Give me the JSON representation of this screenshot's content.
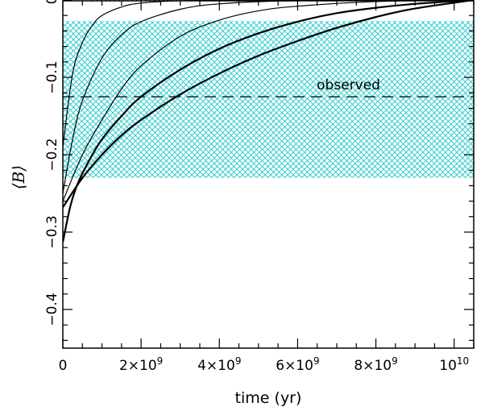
{
  "chart_data": {
    "type": "line",
    "xlabel": "time (yr)",
    "ylabel": "⟨B⟩",
    "xlim": [
      0,
      10500000000.0
    ],
    "ylim": [
      -0.45,
      0.0
    ],
    "x_ticks": [
      {
        "value": 0,
        "label": "0"
      },
      {
        "value": 2000000000.0,
        "label": "2×10^9"
      },
      {
        "value": 4000000000.0,
        "label": "4×10^9"
      },
      {
        "value": 6000000000.0,
        "label": "6×10^9"
      },
      {
        "value": 8000000000.0,
        "label": "8×10^9"
      },
      {
        "value": 10000000000.0,
        "label": "10^10"
      }
    ],
    "y_ticks": [
      {
        "value": 0,
        "label": "0"
      },
      {
        "value": -0.1,
        "label": "−0.1"
      },
      {
        "value": -0.2,
        "label": "−0.2"
      },
      {
        "value": -0.3,
        "label": "−0.3"
      },
      {
        "value": -0.4,
        "label": "−0.4"
      }
    ],
    "reference_line": {
      "value": 0,
      "style": "dotted"
    },
    "observed_line": {
      "value": -0.125,
      "style": "dashed",
      "label": "observed"
    },
    "observed_band": {
      "y_range": [
        -0.23,
        -0.027
      ],
      "color": "#33cccc",
      "pattern": "crosshatch"
    },
    "series": [
      {
        "width": 1.2,
        "values": [
          [
            0,
            -0.19
          ],
          [
            250000000.0,
            -0.095
          ],
          [
            500000000.0,
            -0.055
          ],
          [
            750000000.0,
            -0.033
          ],
          [
            1000000000.0,
            -0.02
          ],
          [
            1500000000.0,
            -0.009
          ],
          [
            2000000000.0,
            -0.004
          ],
          [
            3000000000.0,
            -0.001
          ],
          [
            5000000000.0,
            0.0
          ],
          [
            10500000000.0,
            0.0
          ]
        ]
      },
      {
        "width": 1.2,
        "values": [
          [
            0,
            -0.25
          ],
          [
            250000000.0,
            -0.18
          ],
          [
            500000000.0,
            -0.13
          ],
          [
            1000000000.0,
            -0.075
          ],
          [
            1500000000.0,
            -0.045
          ],
          [
            2000000000.0,
            -0.028
          ],
          [
            3000000000.0,
            -0.012
          ],
          [
            4000000000.0,
            -0.005
          ],
          [
            6000000000.0,
            -0.001
          ],
          [
            10500000000.0,
            0.0
          ]
        ]
      },
      {
        "width": 1.2,
        "values": [
          [
            0,
            -0.26
          ],
          [
            500000000.0,
            -0.2
          ],
          [
            1000000000.0,
            -0.155
          ],
          [
            1500000000.0,
            -0.115
          ],
          [
            2000000000.0,
            -0.085
          ],
          [
            3000000000.0,
            -0.047
          ],
          [
            4000000000.0,
            -0.026
          ],
          [
            5000000000.0,
            -0.014
          ],
          [
            6000000000.0,
            -0.008
          ],
          [
            8000000000.0,
            -0.002
          ],
          [
            10500000000.0,
            0.0
          ]
        ]
      },
      {
        "width": 2.2,
        "values": [
          [
            0,
            -0.313
          ],
          [
            200000000.0,
            -0.265
          ],
          [
            400000000.0,
            -0.235
          ],
          [
            700000000.0,
            -0.205
          ],
          [
            1000000000.0,
            -0.18
          ],
          [
            1500000000.0,
            -0.15
          ],
          [
            2000000000.0,
            -0.125
          ],
          [
            3000000000.0,
            -0.09
          ],
          [
            4000000000.0,
            -0.063
          ],
          [
            5000000000.0,
            -0.043
          ],
          [
            6000000000.0,
            -0.028
          ],
          [
            7000000000.0,
            -0.017
          ],
          [
            8000000000.0,
            -0.01
          ],
          [
            9000000000.0,
            -0.005
          ],
          [
            10500000000.0,
            0.0
          ]
        ]
      },
      {
        "width": 2.2,
        "values": [
          [
            0,
            -0.268
          ],
          [
            500000000.0,
            -0.23
          ],
          [
            1000000000.0,
            -0.2
          ],
          [
            1500000000.0,
            -0.175
          ],
          [
            2000000000.0,
            -0.155
          ],
          [
            3000000000.0,
            -0.122
          ],
          [
            4000000000.0,
            -0.095
          ],
          [
            5000000000.0,
            -0.072
          ],
          [
            6000000000.0,
            -0.053
          ],
          [
            7000000000.0,
            -0.036
          ],
          [
            8000000000.0,
            -0.022
          ],
          [
            9000000000.0,
            -0.011
          ],
          [
            10500000000.0,
            0.0
          ]
        ]
      }
    ]
  }
}
